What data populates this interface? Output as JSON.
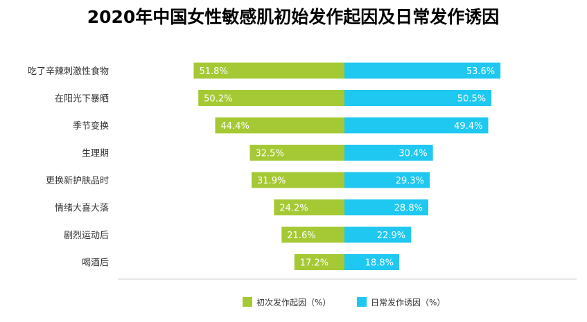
{
  "chart_data": {
    "type": "bar",
    "orientation": "horizontal-diverging",
    "title": "2020年中国女性敏感肌初始发作起因及日常发作诱因",
    "categories": [
      "吃了辛辣刺激性食物",
      "在阳光下暴晒",
      "季节变换",
      "生理期",
      "更换新护肤品时",
      "情绪大喜大落",
      "剧烈运动后",
      "喝酒后"
    ],
    "series": [
      {
        "name": "初次发作起因（%）",
        "side": "left",
        "color": "#a5c934",
        "values": [
          51.8,
          50.2,
          44.4,
          32.5,
          31.9,
          24.2,
          21.6,
          17.2
        ],
        "labels": [
          "51.8%",
          "50.2%",
          "44.4%",
          "32.5%",
          "31.9%",
          "24.2%",
          "21.6%",
          "17.2%"
        ]
      },
      {
        "name": "日常发作诱因（%）",
        "side": "right",
        "color": "#1ec8f0",
        "values": [
          53.6,
          50.5,
          49.4,
          30.4,
          29.3,
          28.8,
          22.9,
          18.8
        ],
        "labels": [
          "53.6%",
          "50.5%",
          "49.4%",
          "30.4%",
          "29.3%",
          "28.8%",
          "22.9%",
          "18.8%"
        ]
      }
    ],
    "xlabel": "",
    "ylabel": "",
    "xlim": [
      0,
      55
    ],
    "grid": false,
    "legend_position": "bottom-center",
    "label_color": "#ffffff",
    "text_color": "#333333",
    "axis_color": "#cccccc"
  }
}
